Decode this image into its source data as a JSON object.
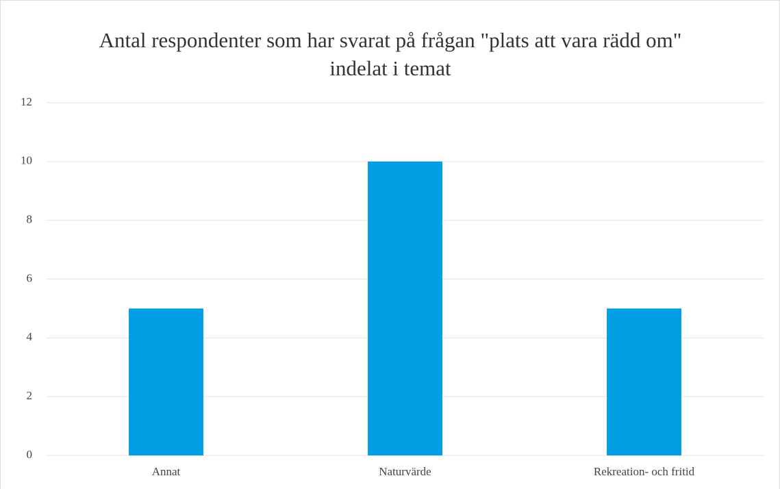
{
  "chart_data": {
    "type": "bar",
    "title": "Antal respondenter som har svarat på frågan \"plats att vara rädd om\" indelat i temat",
    "categories": [
      "Annat",
      "Naturvärde",
      "Rekreation- och fritid"
    ],
    "values": [
      5,
      10,
      5
    ],
    "color": "#009fe3",
    "ylim": [
      0,
      12
    ],
    "yticks": [
      0,
      2,
      4,
      6,
      8,
      10,
      12
    ],
    "grid": true
  }
}
